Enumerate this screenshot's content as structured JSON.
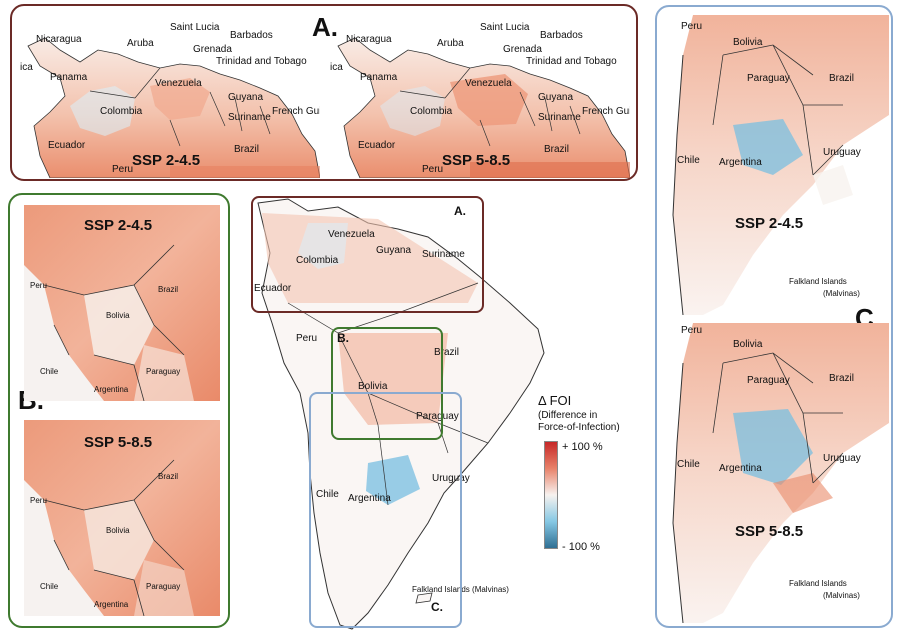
{
  "panel_a": {
    "label": "A.",
    "maps": [
      {
        "scenario": "SSP 2-4.5",
        "places": [
          "Nicaragua",
          "ica",
          "Panama",
          "Aruba",
          "Saint Lucia",
          "Barbados",
          "Grenada",
          "Trinidad and Tobago",
          "Venezuela",
          "Colombia",
          "Guyana",
          "Suriname",
          "French Gui",
          "Ecuador",
          "Brazil",
          "Peru"
        ]
      },
      {
        "scenario": "SSP 5-8.5",
        "places": [
          "Nicaragua",
          "ica",
          "Panama",
          "Aruba",
          "Saint Lucia",
          "Barbados",
          "Grenada",
          "Trinidad and Tobago",
          "Venezuela",
          "Colombia",
          "Guyana",
          "Suriname",
          "French Gui",
          "Ecuador",
          "Brazil",
          "Peru"
        ]
      }
    ]
  },
  "panel_b": {
    "label": "B.",
    "maps": [
      {
        "scenario": "SSP 2-4.5",
        "places": [
          "Brazil",
          "Peru",
          "Bolivia",
          "Chile",
          "Paraguay",
          "Argentina"
        ]
      },
      {
        "scenario": "SSP 5-8.5",
        "places": [
          "Brazil",
          "Peru",
          "Bolivia",
          "Chile",
          "Paraguay",
          "Argentina"
        ]
      }
    ]
  },
  "panel_c": {
    "label": "C.",
    "maps": [
      {
        "scenario": "SSP 2-4.5",
        "places": [
          "Peru",
          "Bolivia",
          "Paraguay",
          "Brazil",
          "Chile",
          "Argentina",
          "Uruguay",
          "Falkland Islands",
          "(Malvinas)"
        ]
      },
      {
        "scenario": "SSP 5-8.5",
        "places": [
          "Peru",
          "Bolivia",
          "Paraguay",
          "Brazil",
          "Chile",
          "Argentina",
          "Uruguay",
          "Falkland Islands",
          "(Malvinas)"
        ]
      }
    ]
  },
  "main_map": {
    "box_labels": [
      "A.",
      "B.",
      "C."
    ],
    "places": [
      "Venezuela",
      "Colombia",
      "Guyana",
      "Suriname",
      "Ecuador",
      "Peru",
      "Brazil",
      "Bolivia",
      "Paraguay",
      "Chile",
      "Argentina",
      "Uruguay",
      "Falkland Islands (Malvinas)"
    ]
  },
  "legend": {
    "title": "Δ FOI",
    "subtitle_line1": "(Difference in",
    "subtitle_line2": "Force-of-Infection)",
    "max_label": "+ 100 %",
    "min_label": "- 100 %",
    "colors": {
      "high": "#c62828",
      "mid": "#f7f2ef",
      "low": "#2f6f93"
    }
  }
}
